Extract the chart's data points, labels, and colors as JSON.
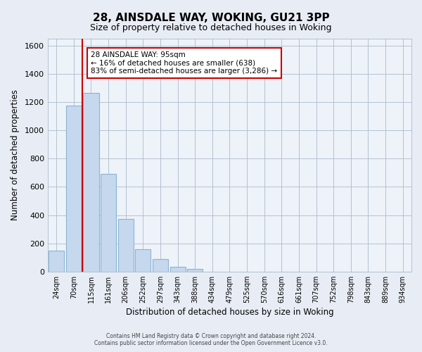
{
  "title": "28, AINSDALE WAY, WOKING, GU21 3PP",
  "subtitle": "Size of property relative to detached houses in Woking",
  "xlabel": "Distribution of detached houses by size in Woking",
  "ylabel": "Number of detached properties",
  "bar_labels": [
    "24sqm",
    "70sqm",
    "115sqm",
    "161sqm",
    "206sqm",
    "252sqm",
    "297sqm",
    "343sqm",
    "388sqm",
    "434sqm",
    "479sqm",
    "525sqm",
    "570sqm",
    "616sqm",
    "661sqm",
    "707sqm",
    "752sqm",
    "798sqm",
    "843sqm",
    "889sqm",
    "934sqm"
  ],
  "bar_values": [
    150,
    1175,
    1265,
    690,
    375,
    160,
    90,
    35,
    20,
    0,
    0,
    0,
    0,
    0,
    0,
    0,
    0,
    0,
    0,
    0,
    0
  ],
  "bar_color": "#c5d8ed",
  "bar_edge_color": "#8ab4d4",
  "ylim": [
    0,
    1650
  ],
  "yticks": [
    0,
    200,
    400,
    600,
    800,
    1000,
    1200,
    1400,
    1600
  ],
  "property_line_color": "#cc0000",
  "annotation_title": "28 AINSDALE WAY: 95sqm",
  "annotation_line1": "← 16% of detached houses are smaller (638)",
  "annotation_line2": "83% of semi-detached houses are larger (3,286) →",
  "annotation_box_edge_color": "#cc0000",
  "annotation_box_face_color": "#ffffff",
  "footer_line1": "Contains HM Land Registry data © Crown copyright and database right 2024.",
  "footer_line2": "Contains public sector information licensed under the Open Government Licence v3.0.",
  "background_color": "#e8edf5",
  "plot_background_color": "#eef2f9",
  "grid_color": "#aabccc",
  "title_fontsize": 11,
  "subtitle_fontsize": 9
}
